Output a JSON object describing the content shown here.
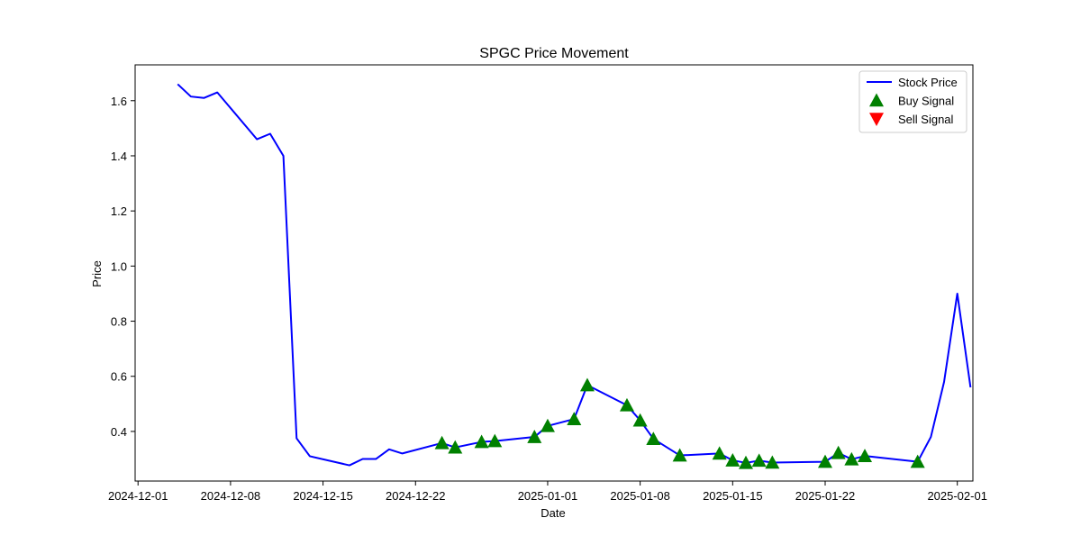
{
  "chart_data": {
    "type": "line",
    "title": "SPGC Price Movement",
    "xlabel": "Date",
    "ylabel": "Price",
    "xlim": [
      "2024-12-01",
      "2025-02-02"
    ],
    "ylim": [
      0.22,
      1.73
    ],
    "x_ticks": [
      "2024-12-01",
      "2024-12-08",
      "2024-12-15",
      "2024-12-22",
      "2025-01-01",
      "2025-01-08",
      "2025-01-15",
      "2025-01-22",
      "2025-02-01"
    ],
    "y_ticks": [
      "0.4",
      "0.6",
      "0.8",
      "1.0",
      "1.2",
      "1.4",
      "1.6"
    ],
    "grid": false,
    "legend_position": "top-right",
    "series": [
      {
        "name": "Stock Price",
        "color": "#0000ff",
        "points": [
          [
            "2024-12-04",
            1.66
          ],
          [
            "2024-12-05",
            1.615
          ],
          [
            "2024-12-06",
            1.61
          ],
          [
            "2024-12-07",
            1.63
          ],
          [
            "2024-12-10",
            1.46
          ],
          [
            "2024-12-11",
            1.48
          ],
          [
            "2024-12-12",
            1.4
          ],
          [
            "2024-12-13",
            0.375
          ],
          [
            "2024-12-14",
            0.31
          ],
          [
            "2024-12-17",
            0.277
          ],
          [
            "2024-12-18",
            0.3
          ],
          [
            "2024-12-19",
            0.3
          ],
          [
            "2024-12-20",
            0.335
          ],
          [
            "2024-12-21",
            0.32
          ],
          [
            "2024-12-24",
            0.358
          ],
          [
            "2024-12-25",
            0.342
          ],
          [
            "2024-12-27",
            0.362
          ],
          [
            "2024-12-28",
            0.365
          ],
          [
            "2024-12-31",
            0.38
          ],
          [
            "2025-01-01",
            0.42
          ],
          [
            "2025-01-03",
            0.445
          ],
          [
            "2025-01-04",
            0.568
          ],
          [
            "2025-01-07",
            0.495
          ],
          [
            "2025-01-08",
            0.44
          ],
          [
            "2025-01-09",
            0.373
          ],
          [
            "2025-01-11",
            0.313
          ],
          [
            "2025-01-14",
            0.32
          ],
          [
            "2025-01-15",
            0.295
          ],
          [
            "2025-01-16",
            0.286
          ],
          [
            "2025-01-17",
            0.294
          ],
          [
            "2025-01-18",
            0.287
          ],
          [
            "2025-01-22",
            0.29
          ],
          [
            "2025-01-23",
            0.322
          ],
          [
            "2025-01-24",
            0.299
          ],
          [
            "2025-01-25",
            0.311
          ],
          [
            "2025-01-29",
            0.29
          ],
          [
            "2025-01-30",
            0.38
          ],
          [
            "2025-01-31",
            0.58
          ],
          [
            "2025-02-01",
            0.9
          ],
          [
            "2025-02-02",
            0.56
          ]
        ]
      },
      {
        "name": "Buy Signal",
        "color": "#008000",
        "marker": "triangle-up",
        "points": [
          [
            "2024-12-24",
            0.358
          ],
          [
            "2024-12-25",
            0.342
          ],
          [
            "2024-12-27",
            0.362
          ],
          [
            "2024-12-28",
            0.365
          ],
          [
            "2024-12-31",
            0.38
          ],
          [
            "2025-01-01",
            0.42
          ],
          [
            "2025-01-03",
            0.445
          ],
          [
            "2025-01-04",
            0.568
          ],
          [
            "2025-01-07",
            0.495
          ],
          [
            "2025-01-08",
            0.44
          ],
          [
            "2025-01-09",
            0.373
          ],
          [
            "2025-01-11",
            0.313
          ],
          [
            "2025-01-14",
            0.32
          ],
          [
            "2025-01-15",
            0.295
          ],
          [
            "2025-01-16",
            0.286
          ],
          [
            "2025-01-17",
            0.294
          ],
          [
            "2025-01-18",
            0.287
          ],
          [
            "2025-01-22",
            0.29
          ],
          [
            "2025-01-23",
            0.322
          ],
          [
            "2025-01-24",
            0.299
          ],
          [
            "2025-01-25",
            0.311
          ],
          [
            "2025-01-29",
            0.29
          ]
        ]
      },
      {
        "name": "Sell Signal",
        "color": "#ff0000",
        "marker": "triangle-down",
        "points": []
      }
    ]
  }
}
